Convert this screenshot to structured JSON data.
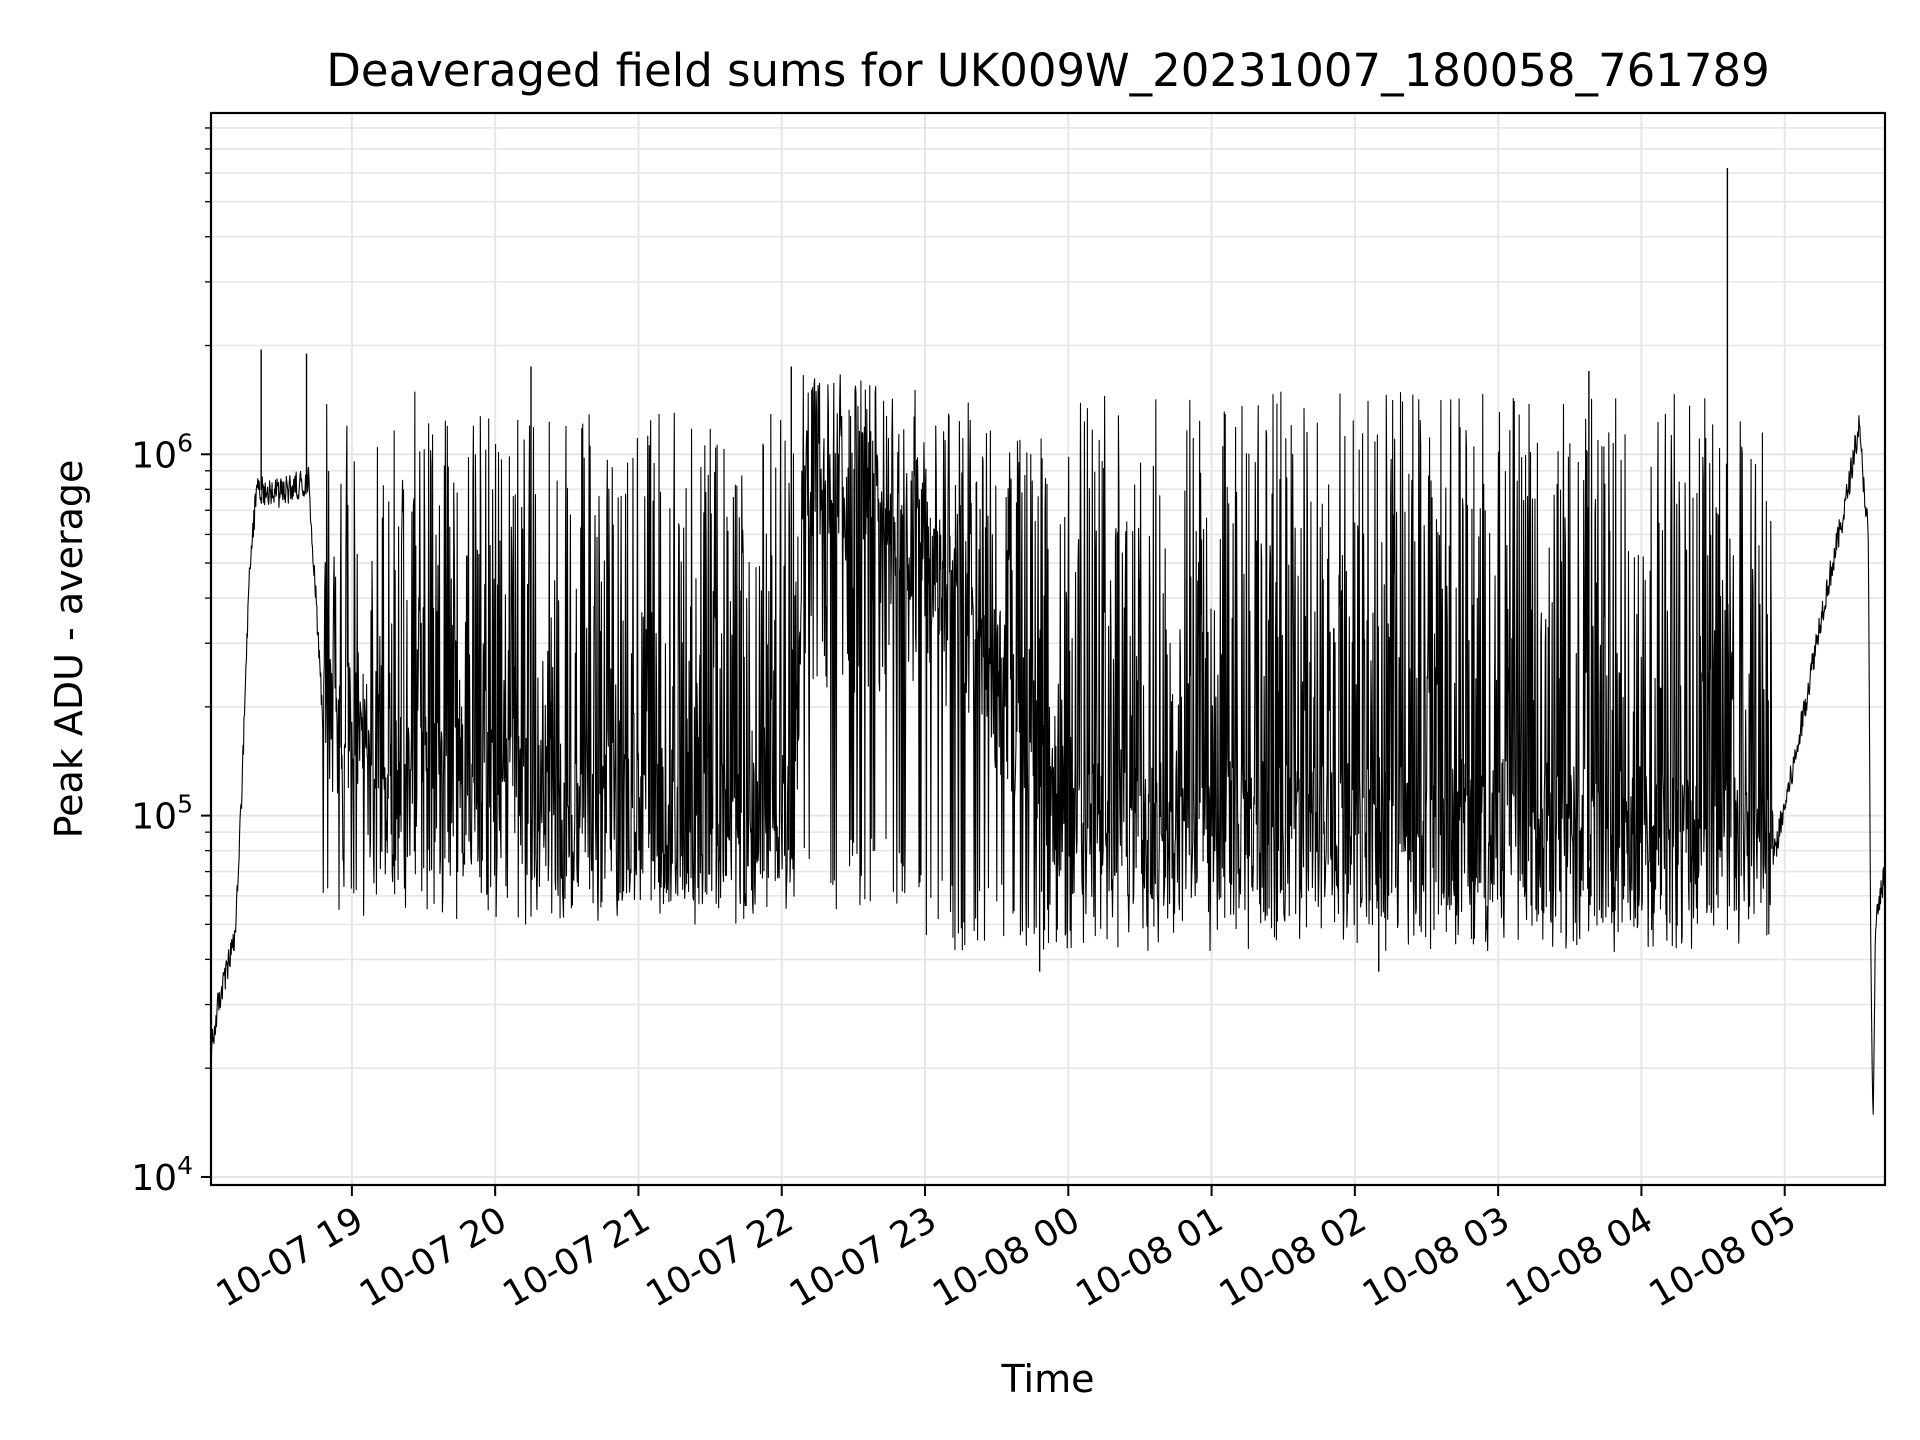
{
  "chart_data": {
    "type": "line",
    "title": "Deaveraged field sums for UK009W_20231007_180058_761789",
    "xlabel": "Time",
    "ylabel": "Peak ADU - average",
    "yscale": "log",
    "ylim": [
      9500,
      8800000
    ],
    "xlim": [
      "2023-10-07 18:01",
      "2023-10-08 05:42"
    ],
    "grid": true,
    "line_color": "#000000",
    "y_ticks": [
      {
        "value": 10000,
        "base": "10",
        "exp": "4"
      },
      {
        "value": 100000,
        "base": "10",
        "exp": "5"
      },
      {
        "value": 1000000,
        "base": "10",
        "exp": "6"
      }
    ],
    "x_ticks": [
      {
        "value": "2023-10-07 19:00",
        "label": "10-07 19"
      },
      {
        "value": "2023-10-07 20:00",
        "label": "10-07 20"
      },
      {
        "value": "2023-10-07 21:00",
        "label": "10-07 21"
      },
      {
        "value": "2023-10-07 22:00",
        "label": "10-07 22"
      },
      {
        "value": "2023-10-07 23:00",
        "label": "10-07 23"
      },
      {
        "value": "2023-10-08 00:00",
        "label": "10-08 00"
      },
      {
        "value": "2023-10-08 01:00",
        "label": "10-08 01"
      },
      {
        "value": "2023-10-08 02:00",
        "label": "10-08 02"
      },
      {
        "value": "2023-10-08 03:00",
        "label": "10-08 03"
      },
      {
        "value": "2023-10-08 04:00",
        "label": "10-08 04"
      },
      {
        "value": "2023-10-08 05:00",
        "label": "10-08 05"
      }
    ],
    "series": [
      {
        "baseline": [
          {
            "x": "2023-10-07 18:01",
            "y": 22000
          },
          {
            "x": "2023-10-07 18:04",
            "y": 30000
          },
          {
            "x": "2023-10-07 18:08",
            "y": 38000
          },
          {
            "x": "2023-10-07 18:11",
            "y": 45000
          },
          {
            "x": "2023-10-07 18:14",
            "y": 120000
          },
          {
            "x": "2023-10-07 18:17",
            "y": 450000
          },
          {
            "x": "2023-10-07 18:20",
            "y": 800000
          },
          {
            "x": "2023-10-07 18:30",
            "y": 780000
          },
          {
            "x": "2023-10-07 18:42",
            "y": 850000
          },
          {
            "x": "2023-10-07 18:48",
            "y": 180000
          },
          {
            "x": "2023-10-07 19:15",
            "y": 110000
          },
          {
            "x": "2023-10-07 19:45",
            "y": 100000
          },
          {
            "x": "2023-10-07 20:20",
            "y": 90000
          },
          {
            "x": "2023-10-07 21:00",
            "y": 85000
          },
          {
            "x": "2023-10-07 21:40",
            "y": 80000
          },
          {
            "x": "2023-10-07 22:05",
            "y": 80000
          },
          {
            "x": "2023-10-07 22:10",
            "y": 900000
          },
          {
            "x": "2023-10-07 22:40",
            "y": 850000
          },
          {
            "x": "2023-10-07 23:00",
            "y": 500000
          },
          {
            "x": "2023-10-07 23:30",
            "y": 200000
          },
          {
            "x": "2023-10-08 00:00",
            "y": 90000
          },
          {
            "x": "2023-10-08 01:00",
            "y": 80000
          },
          {
            "x": "2023-10-08 01:45",
            "y": 75000
          },
          {
            "x": "2023-10-08 02:30",
            "y": 80000
          },
          {
            "x": "2023-10-08 03:30",
            "y": 75000
          },
          {
            "x": "2023-10-08 04:30",
            "y": 75000
          },
          {
            "x": "2023-10-08 04:55",
            "y": 75000
          },
          {
            "x": "2023-10-08 05:05",
            "y": 150000
          },
          {
            "x": "2023-10-08 05:15",
            "y": 350000
          },
          {
            "x": "2023-10-08 05:25",
            "y": 700000
          },
          {
            "x": "2023-10-08 05:31",
            "y": 1200000
          },
          {
            "x": "2023-10-08 05:35",
            "y": 600000
          },
          {
            "x": "2023-10-08 05:36",
            "y": 45000
          },
          {
            "x": "2023-10-08 05:37",
            "y": 13000
          },
          {
            "x": "2023-10-08 05:38",
            "y": 50000
          },
          {
            "x": "2023-10-08 05:42",
            "y": 70000
          }
        ],
        "envelope": [
          {
            "x_start": "2023-10-07 18:48",
            "x_end": "2023-10-07 19:30",
            "low": 50000,
            "high": 1500000
          },
          {
            "x_start": "2023-10-07 19:30",
            "x_end": "2023-10-07 22:05",
            "low": 50000,
            "high": 1300000
          },
          {
            "x_start": "2023-10-07 22:05",
            "x_end": "2023-10-07 23:00",
            "low": 55000,
            "high": 1700000
          },
          {
            "x_start": "2023-10-07 23:00",
            "x_end": "2023-10-08 04:55",
            "low": 42000,
            "high": 1500000
          }
        ],
        "spikes": [
          {
            "x": "2023-10-07 18:22",
            "y": 1950000
          },
          {
            "x": "2023-10-07 18:41",
            "y": 1900000
          },
          {
            "x": "2023-10-07 20:15",
            "y": 1750000
          },
          {
            "x": "2023-10-07 22:04",
            "y": 1750000
          },
          {
            "x": "2023-10-08 03:38",
            "y": 1700000
          },
          {
            "x": "2023-10-08 04:36",
            "y": 6200000
          },
          {
            "x": "2023-10-08 02:10",
            "y": 37000
          },
          {
            "x": "2023-10-07 23:48",
            "y": 37000
          }
        ]
      }
    ]
  }
}
